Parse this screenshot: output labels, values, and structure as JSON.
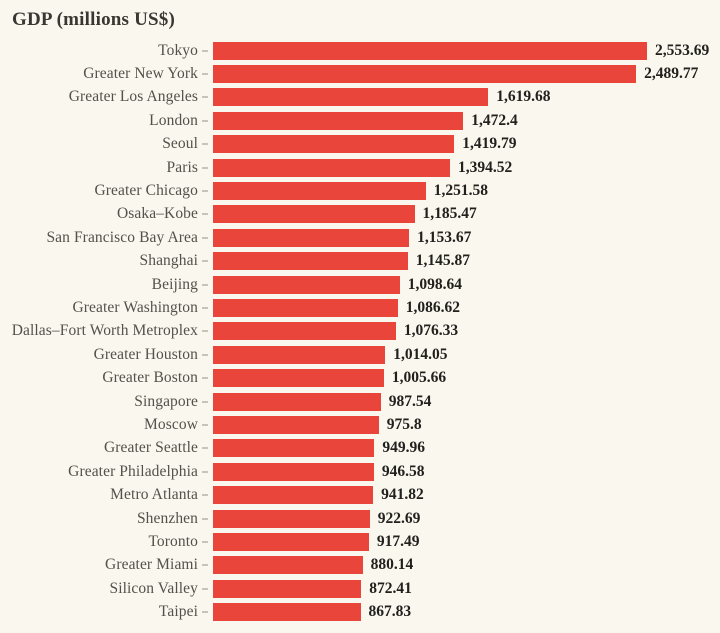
{
  "title": "GDP (millions US$)",
  "colors": {
    "background": "#faf7ef",
    "bar": "#ea453b",
    "title_text": "#3a3733",
    "label_text": "#54504b",
    "value_text": "#21201d",
    "tick": "#c9c4ba"
  },
  "chart_data": {
    "type": "bar",
    "orientation": "horizontal",
    "title": "GDP (millions US$)",
    "xlabel": "",
    "ylabel": "",
    "xlim": [
      0,
      2553.69
    ],
    "grid": false,
    "legend": false,
    "categories": [
      "Tokyo",
      "Greater New York",
      "Greater Los Angeles",
      "London",
      "Seoul",
      "Paris",
      "Greater Chicago",
      "Osaka–Kobe",
      "San Francisco Bay Area",
      "Shanghai",
      "Beijing",
      "Greater Washington",
      "Dallas–Fort Worth Metroplex",
      "Greater Houston",
      "Greater Boston",
      "Singapore",
      "Moscow",
      "Greater Seattle",
      "Greater Philadelphia",
      "Metro Atlanta",
      "Shenzhen",
      "Toronto",
      "Greater Miami",
      "Silicon Valley",
      "Taipei"
    ],
    "values": [
      2553.69,
      2489.77,
      1619.68,
      1472.4,
      1419.79,
      1394.52,
      1251.58,
      1185.47,
      1153.67,
      1145.87,
      1098.64,
      1086.62,
      1076.33,
      1014.05,
      1005.66,
      987.54,
      975.8,
      949.96,
      946.58,
      941.82,
      922.69,
      917.49,
      880.14,
      872.41,
      867.83
    ],
    "value_labels": [
      "2,553.69",
      "2,489.77",
      "1,619.68",
      "1,472.4",
      "1,419.79",
      "1,394.52",
      "1,251.58",
      "1,185.47",
      "1,153.67",
      "1,145.87",
      "1,098.64",
      "1,086.62",
      "1,076.33",
      "1,014.05",
      "1,005.66",
      "987.54",
      "975.8",
      "949.96",
      "946.58",
      "941.82",
      "922.69",
      "917.49",
      "880.14",
      "872.41",
      "867.83"
    ]
  }
}
